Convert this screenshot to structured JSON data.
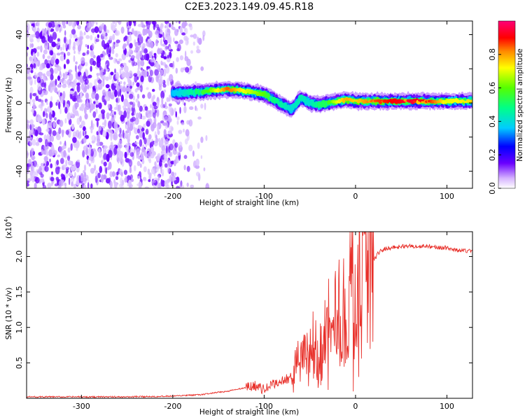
{
  "title": "C2E3.2023.149.09.45.R18",
  "chart_data": [
    {
      "type": "heatmap",
      "xlabel": "Height of straight line (km)",
      "ylabel": "Frequency (Hz)",
      "xlim": [
        -360,
        128
      ],
      "ylim": [
        -50,
        48
      ],
      "x_ticks": [
        "-300",
        "-200",
        "-100",
        "0",
        "100"
      ],
      "x_tick_values": [
        -300,
        -200,
        -100,
        0,
        100
      ],
      "y_ticks": [
        "-40",
        "-20",
        "0",
        "20",
        "40"
      ],
      "y_tick_values": [
        -40,
        -20,
        0,
        20,
        40
      ],
      "colorbar": {
        "label": "Normalized spectral amplitude",
        "range": [
          0.0,
          1.0
        ],
        "ticks": [
          "0.0",
          "0.2",
          "0.4",
          "0.6",
          "0.8"
        ],
        "tick_values": [
          0.0,
          0.2,
          0.4,
          0.6,
          0.8
        ]
      },
      "noise_region": {
        "x_range": [
          -360,
          -160
        ],
        "frequency_range": [
          -50,
          48
        ]
      },
      "ridge": {
        "x": [
          -200,
          -180,
          -160,
          -140,
          -120,
          -100,
          -90,
          -80,
          -70,
          -60,
          -50,
          -40,
          -30,
          -20,
          -10,
          0,
          20,
          40,
          60,
          80,
          100,
          128
        ],
        "frequency": [
          6,
          6,
          7,
          8,
          7,
          5,
          2,
          -1,
          -4,
          3,
          0,
          -1,
          0,
          1,
          2,
          1,
          1,
          1,
          1,
          1,
          1,
          1
        ],
        "peak_amplitude": [
          0.35,
          0.45,
          0.6,
          0.85,
          0.7,
          0.6,
          0.5,
          0.45,
          0.4,
          0.45,
          0.4,
          0.5,
          0.55,
          0.7,
          0.8,
          0.75,
          0.85,
          0.9,
          0.95,
          0.9,
          0.7,
          0.75
        ]
      }
    },
    {
      "type": "line",
      "xlabel": "Height of straight line (km)",
      "ylabel": "SNR (10 * v/v)",
      "y_scale_label": "(x10",
      "y_scale_exponent": "4",
      "y_scale_close": ")",
      "xlim": [
        -360,
        128
      ],
      "ylim": [
        0,
        2.35
      ],
      "x_ticks": [
        "-300",
        "-200",
        "-100",
        "0",
        "100"
      ],
      "x_tick_values": [
        -300,
        -200,
        -100,
        0,
        100
      ],
      "y_ticks": [
        "0.5",
        "1.0",
        "1.5",
        "2.0"
      ],
      "y_tick_values": [
        0.5,
        1.0,
        1.5,
        2.0
      ],
      "series": [
        {
          "color": "#e8302a",
          "x": [
            -360,
            -300,
            -250,
            -200,
            -170,
            -140,
            -120,
            -110,
            -100,
            -90,
            -80,
            -70,
            -65,
            -60,
            -55,
            -50,
            -45,
            -40,
            -35,
            -30,
            -25,
            -20,
            -15,
            -10,
            -5,
            0,
            5,
            10,
            13,
            15,
            20,
            25,
            30,
            40,
            50,
            60,
            70,
            80,
            90,
            100,
            110,
            120,
            128
          ],
          "y": [
            0.02,
            0.02,
            0.02,
            0.03,
            0.05,
            0.1,
            0.15,
            0.18,
            0.12,
            0.2,
            0.25,
            0.3,
            0.45,
            0.5,
            0.6,
            0.55,
            0.65,
            0.7,
            0.9,
            0.85,
            1.1,
            1.3,
            1.1,
            1.4,
            1.6,
            1.55,
            1.7,
            1.8,
            1.75,
            1.9,
            1.95,
            2.05,
            2.1,
            2.13,
            2.14,
            2.15,
            2.14,
            2.15,
            2.13,
            2.12,
            2.09,
            2.08,
            2.08
          ]
        }
      ]
    }
  ]
}
